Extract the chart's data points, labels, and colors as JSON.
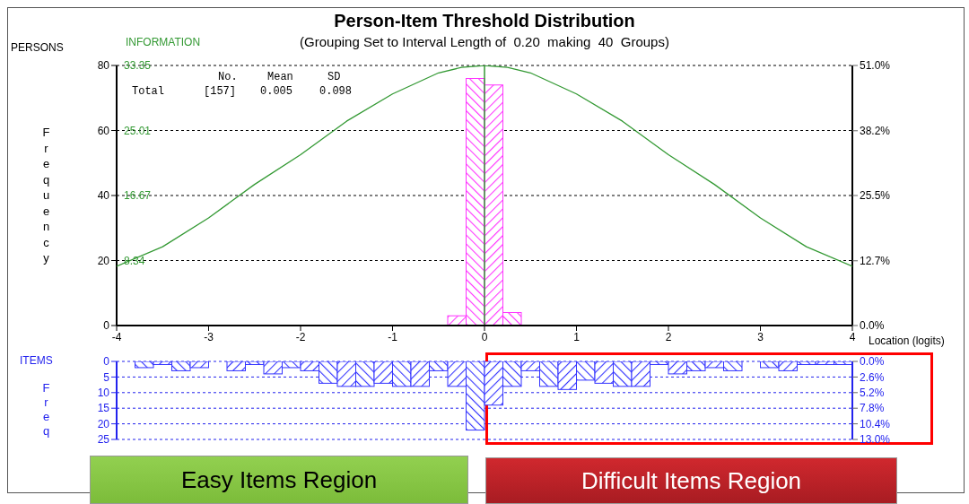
{
  "chart_data": [
    {
      "type": "histogram",
      "title": "Person-Item Threshold Distribution",
      "subtitle": "(Grouping Set to Interval Length of  0.20  making  40  Groups)",
      "xlabel": "Location (logits)",
      "ylabel": "Frequency",
      "y2label": "INFORMATION",
      "annotations": [
        "PERSONS",
        "No.",
        "Mean",
        "SD",
        "Total",
        "[157]",
        "0.005",
        "0.098"
      ],
      "bins": [
        -4,
        -3.8,
        -3.6,
        -3.4,
        -3.2,
        -3,
        -2.8,
        -2.6,
        -2.4,
        -2.2,
        -2,
        -1.8,
        -1.6,
        -1.4,
        -1.2,
        -1,
        -0.8,
        -0.6,
        -0.4,
        -0.2,
        0,
        0.2,
        0.4,
        0.6,
        0.8,
        1,
        1.2,
        1.4,
        1.6,
        1.8,
        2,
        2.2,
        2.4,
        2.6,
        2.8,
        3,
        3.2,
        3.4,
        3.6,
        3.8,
        4
      ],
      "series": [
        {
          "color": "#ff33ff",
          "values": [
            0,
            0,
            0,
            0,
            0,
            0,
            0,
            0,
            0,
            0,
            0,
            0,
            0,
            0,
            0,
            0,
            0,
            0,
            3,
            76,
            74,
            4,
            0,
            0,
            0,
            0,
            0,
            0,
            0,
            0,
            0,
            0,
            0,
            0,
            0,
            0,
            0,
            0,
            0,
            0
          ]
        },
        {
          "type": "line",
          "axis": "y2",
          "color": "#339933",
          "x": [
            -4,
            -3.5,
            -3,
            -2.5,
            -2,
            -1.5,
            -1,
            -0.5,
            -0.25,
            0,
            0.25,
            0.5,
            1,
            1.5,
            2,
            2.5,
            3,
            3.5,
            4
          ],
          "values": [
            7.6,
            10.1,
            13.8,
            18.1,
            21.9,
            26.2,
            29.7,
            32.4,
            33.1,
            33.35,
            33.1,
            32.4,
            29.7,
            26.2,
            21.9,
            18.1,
            13.8,
            10.1,
            7.6
          ]
        }
      ],
      "xlim": [
        -4,
        4
      ],
      "xticks": [
        -4,
        -3,
        -2,
        -1,
        0,
        1,
        2,
        3,
        4
      ],
      "ylim": [
        0,
        80
      ],
      "yticks": [
        0,
        20,
        40,
        60,
        80
      ],
      "y2lim": [
        0,
        33.35
      ],
      "y2ticks": [
        8.34,
        16.67,
        25.01,
        33.35
      ],
      "y3lim": [
        0,
        51
      ],
      "y3ticks": [
        {
          "value": 0,
          "label": "0.0%"
        },
        {
          "value": 12.7,
          "label": "12.7%"
        },
        {
          "value": 25.5,
          "label": "25.5%"
        },
        {
          "value": 38.2,
          "label": "38.2%"
        },
        {
          "value": 51,
          "label": "51.0%"
        }
      ],
      "grid": "y",
      "marker": "none",
      "ref_lines": [
        {
          "axis": "x",
          "value": 0,
          "color": "#339933"
        }
      ]
    },
    {
      "type": "histogram",
      "ylabel": "Freq",
      "annotations": [
        "ITEMS",
        "Easy Items Region",
        "Difficult Items Region"
      ],
      "bins": [
        -4,
        -3.8,
        -3.6,
        -3.4,
        -3.2,
        -3,
        -2.8,
        -2.6,
        -2.4,
        -2.2,
        -2,
        -1.8,
        -1.6,
        -1.4,
        -1.2,
        -1,
        -0.8,
        -0.6,
        -0.4,
        -0.2,
        0,
        0.2,
        0.4,
        0.6,
        0.8,
        1,
        1.2,
        1.4,
        1.6,
        1.8,
        2,
        2.2,
        2.4,
        2.6,
        2.8,
        3,
        3.2,
        3.4,
        3.6,
        3.8,
        4
      ],
      "series": [
        {
          "color": "#3333ff",
          "values": [
            0,
            2,
            1,
            3,
            2,
            0,
            3,
            1,
            4,
            2,
            3,
            7,
            8,
            8,
            7,
            8,
            8,
            3,
            8,
            22,
            14,
            8,
            3,
            8,
            9,
            6,
            7,
            8,
            8,
            1,
            4,
            3,
            2,
            3,
            0,
            2,
            3,
            1,
            1,
            1
          ]
        }
      ],
      "xlim": [
        -4,
        4
      ],
      "ylim": [
        25,
        0
      ],
      "yticks": [
        0,
        5,
        10,
        15,
        20,
        25
      ],
      "y2lim": [
        13,
        0
      ],
      "y2ticks": [
        {
          "value": 0,
          "label": "0.0%"
        },
        {
          "value": 2.6,
          "label": "2.6%"
        },
        {
          "value": 5.2,
          "label": "5.2%"
        },
        {
          "value": 7.8,
          "label": "7.8%"
        },
        {
          "value": 10.4,
          "label": "10.4%"
        },
        {
          "value": 13,
          "label": "13.0%"
        }
      ],
      "grid": "y",
      "tick_labels": "y"
    }
  ]
}
